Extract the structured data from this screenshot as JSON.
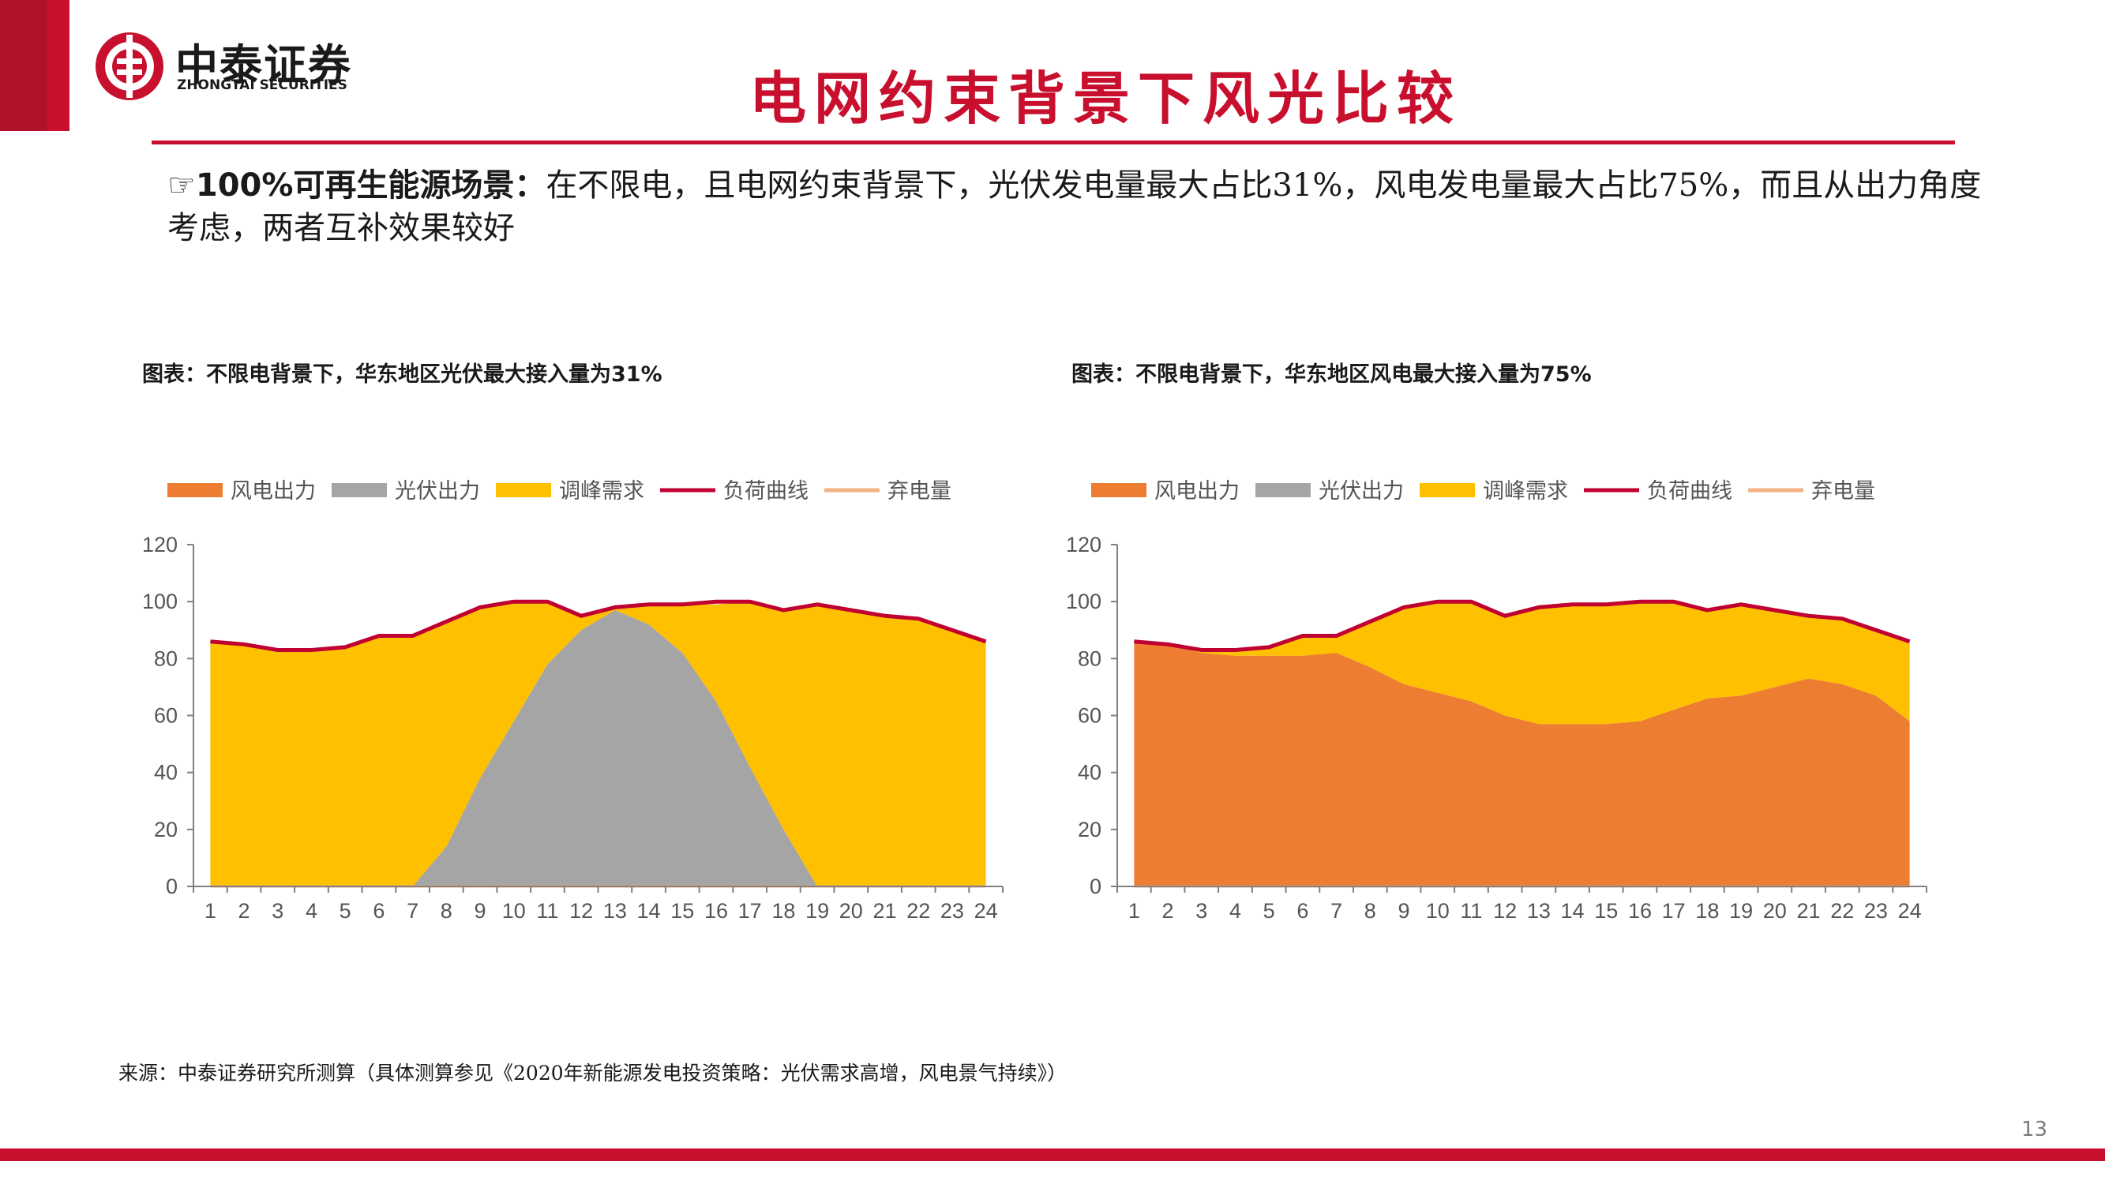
{
  "brand": {
    "name_cn": "中泰证券",
    "name_en": "ZHONGTAI SECURITIES",
    "accent": "#c8102e"
  },
  "page_title": "电网约束背景下风光比较",
  "bullet": {
    "marker": "☞",
    "lead": "100%可再生能源场景：",
    "text": "在不限电，且电网约束背景下，光伏发电量最大占比31%，风电发电量最大占比75%，而且从出力角度考虑，两者互补效果较好"
  },
  "source": "来源：中泰证券研究所测算（具体测算参见《2020年新能源发电投资策略：光伏需求高增，风电景气持续》）",
  "page_number": "13",
  "legend_items": [
    {
      "label": "风电出力",
      "kind": "area",
      "color": "#ed7d31"
    },
    {
      "label": "光伏出力",
      "kind": "area",
      "color": "#a5a5a5"
    },
    {
      "label": "调峰需求",
      "kind": "area",
      "color": "#ffc000"
    },
    {
      "label": "负荷曲线",
      "kind": "line",
      "color": "#c00030"
    },
    {
      "label": "弃电量",
      "kind": "line",
      "color": "#f4b183"
    }
  ],
  "chart_data": [
    {
      "type": "area",
      "title": "图表：不限电背景下，华东地区光伏最大接入量为31%",
      "x": [
        1,
        2,
        3,
        4,
        5,
        6,
        7,
        8,
        9,
        10,
        11,
        12,
        13,
        14,
        15,
        16,
        17,
        18,
        19,
        20,
        21,
        22,
        23,
        24
      ],
      "ylim": [
        0,
        120
      ],
      "yticks": [
        0,
        20,
        40,
        60,
        80,
        100,
        120
      ],
      "grid": false,
      "legend_position": "top",
      "series": [
        {
          "name": "风电出力",
          "kind": "area",
          "values": [
            0,
            0,
            0,
            0,
            0,
            0,
            0,
            0,
            0,
            0,
            0,
            0,
            0,
            0,
            0,
            0,
            0,
            0,
            0,
            0,
            0,
            0,
            0,
            0
          ]
        },
        {
          "name": "光伏出力",
          "kind": "area",
          "values": [
            0,
            0,
            0,
            0,
            0,
            0,
            0,
            14,
            38,
            58,
            78,
            90,
            97,
            92,
            82,
            65,
            42,
            20,
            0,
            0,
            0,
            0,
            0,
            0
          ]
        },
        {
          "name": "调峰需求",
          "kind": "area",
          "values": [
            86,
            85,
            83,
            83,
            84,
            88,
            88,
            79,
            60,
            42,
            22,
            5,
            1,
            7,
            17,
            34,
            58,
            77,
            99,
            97,
            95,
            94,
            90,
            86
          ]
        },
        {
          "name": "负荷曲线",
          "kind": "line",
          "values": [
            86,
            85,
            83,
            83,
            84,
            88,
            88,
            93,
            98,
            100,
            100,
            95,
            98,
            99,
            99,
            100,
            100,
            97,
            99,
            97,
            95,
            94,
            90,
            86
          ]
        },
        {
          "name": "弃电量",
          "kind": "line",
          "values": [
            0,
            0,
            0,
            0,
            0,
            0,
            0,
            0,
            0,
            0,
            0,
            0,
            0,
            0,
            0,
            0,
            0,
            0,
            0,
            0,
            0,
            0,
            0,
            0
          ]
        }
      ]
    },
    {
      "type": "area",
      "title": "图表：不限电背景下，华东地区风电最大接入量为75%",
      "x": [
        1,
        2,
        3,
        4,
        5,
        6,
        7,
        8,
        9,
        10,
        11,
        12,
        13,
        14,
        15,
        16,
        17,
        18,
        19,
        20,
        21,
        22,
        23,
        24
      ],
      "ylim": [
        0,
        120
      ],
      "yticks": [
        0,
        20,
        40,
        60,
        80,
        100,
        120
      ],
      "grid": false,
      "legend_position": "top",
      "series": [
        {
          "name": "风电出力",
          "kind": "area",
          "values": [
            86,
            85,
            82,
            81,
            81,
            81,
            82,
            77,
            71,
            68,
            65,
            60,
            57,
            57,
            57,
            58,
            62,
            66,
            67,
            70,
            73,
            71,
            67,
            58
          ]
        },
        {
          "name": "光伏出力",
          "kind": "area",
          "values": [
            0,
            0,
            0,
            0,
            0,
            0,
            0,
            0,
            0,
            0,
            0,
            0,
            0,
            0,
            0,
            0,
            0,
            0,
            0,
            0,
            0,
            0,
            0,
            0
          ]
        },
        {
          "name": "调峰需求",
          "kind": "area",
          "values": [
            0,
            0,
            1,
            2,
            3,
            7,
            6,
            16,
            27,
            32,
            35,
            35,
            41,
            42,
            42,
            42,
            38,
            31,
            32,
            27,
            22,
            23,
            23,
            28
          ]
        },
        {
          "name": "负荷曲线",
          "kind": "line",
          "values": [
            86,
            85,
            83,
            83,
            84,
            88,
            88,
            93,
            98,
            100,
            100,
            95,
            98,
            99,
            99,
            100,
            100,
            97,
            99,
            97,
            95,
            94,
            90,
            86
          ]
        },
        {
          "name": "弃电量",
          "kind": "line",
          "values": [
            0,
            0,
            0,
            0,
            0,
            0,
            0,
            0,
            0,
            0,
            0,
            0,
            0,
            0,
            0,
            0,
            0,
            0,
            0,
            0,
            0,
            0,
            0,
            0
          ]
        }
      ]
    }
  ]
}
